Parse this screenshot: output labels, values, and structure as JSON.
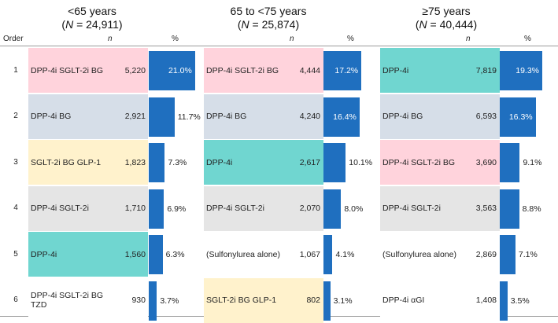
{
  "chart_data": {
    "type": "table",
    "headers": {
      "order": "Order",
      "n": "n",
      "pct": "%"
    },
    "colors": {
      "pink": "#ffd3dc",
      "blue": "#d6dee8",
      "yellow": "#fff2cc",
      "gray": "#e5e5e5",
      "teal": "#70d6d0",
      "white": "#ffffff",
      "bar": "#1f6fbf"
    },
    "orders": [
      "1",
      "2",
      "3",
      "4",
      "5",
      "6"
    ],
    "groups": [
      {
        "label": "<65 years",
        "n_label": "(N = 24,911)",
        "rows": [
          {
            "name": "DPP-4i SGLT-2i BG",
            "n": "5,220",
            "pct": 21.0,
            "pct_label": "21.0%",
            "color": "pink"
          },
          {
            "name": "DPP-4i BG",
            "n": "2,921",
            "pct": 11.7,
            "pct_label": "11.7%",
            "color": "blue"
          },
          {
            "name": "SGLT-2i BG GLP-1",
            "n": "1,823",
            "pct": 7.3,
            "pct_label": "7.3%",
            "color": "yellow"
          },
          {
            "name": "DPP-4i SGLT-2i",
            "n": "1,710",
            "pct": 6.9,
            "pct_label": "6.9%",
            "color": "gray"
          },
          {
            "name": "DPP-4i",
            "n": "1,560",
            "pct": 6.3,
            "pct_label": "6.3%",
            "color": "teal"
          },
          {
            "name": "DPP-4i SGLT-2i BG\nTZD",
            "n": "930",
            "pct": 3.7,
            "pct_label": "3.7%",
            "color": "white"
          }
        ]
      },
      {
        "label": "65 to <75 years",
        "n_label": "(N = 25,874)",
        "rows": [
          {
            "name": "DPP-4i SGLT-2i BG",
            "n": "4,444",
            "pct": 17.2,
            "pct_label": "17.2%",
            "color": "pink"
          },
          {
            "name": "DPP-4i BG",
            "n": "4,240",
            "pct": 16.4,
            "pct_label": "16.4%",
            "color": "blue"
          },
          {
            "name": "DPP-4i",
            "n": "2,617",
            "pct": 10.1,
            "pct_label": "10.1%",
            "color": "teal"
          },
          {
            "name": "DPP-4i SGLT-2i",
            "n": "2,070",
            "pct": 8.0,
            "pct_label": "8.0%",
            "color": "gray"
          },
          {
            "name": "(Sulfonylurea  alone)",
            "n": "1,067",
            "pct": 4.1,
            "pct_label": "4.1%",
            "color": "white"
          },
          {
            "name": "SGLT-2i BG GLP-1",
            "n": "802",
            "pct": 3.1,
            "pct_label": "3.1%",
            "color": "yellow"
          }
        ]
      },
      {
        "label": "≥75 years",
        "n_label": "(N = 40,444)",
        "rows": [
          {
            "name": "DPP-4i",
            "n": "7,819",
            "pct": 19.3,
            "pct_label": "19.3%",
            "color": "teal"
          },
          {
            "name": "DPP-4i BG",
            "n": "6,593",
            "pct": 16.3,
            "pct_label": "16.3%",
            "color": "blue"
          },
          {
            "name": "DPP-4i SGLT-2i BG",
            "n": "3,690",
            "pct": 9.1,
            "pct_label": "9.1%",
            "color": "pink"
          },
          {
            "name": "DPP-4i SGLT-2i",
            "n": "3,563",
            "pct": 8.8,
            "pct_label": "8.8%",
            "color": "gray"
          },
          {
            "name": "(Sulfonylurea  alone)",
            "n": "2,869",
            "pct": 7.1,
            "pct_label": "7.1%",
            "color": "white"
          },
          {
            "name": "DPP-4i αGI",
            "n": "1,408",
            "pct": 3.5,
            "pct_label": "3.5%",
            "color": "white"
          }
        ]
      }
    ]
  }
}
